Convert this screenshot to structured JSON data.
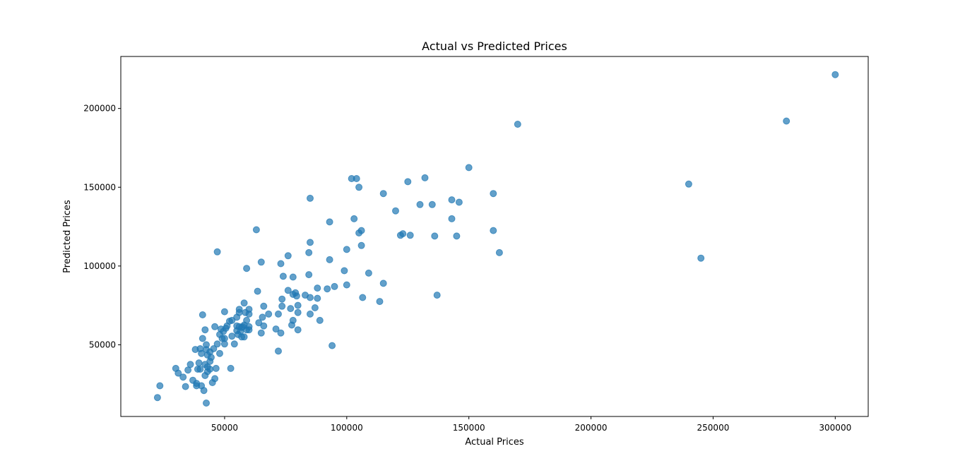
{
  "chart_data": {
    "type": "scatter",
    "title": "Actual vs Predicted Prices",
    "xlabel": "Actual Prices",
    "ylabel": "Predicted Prices",
    "xlim": [
      7500,
      313500
    ],
    "ylim": [
      4500,
      233000
    ],
    "xticks": [
      50000,
      100000,
      150000,
      200000,
      250000,
      300000
    ],
    "yticks": [
      50000,
      100000,
      150000,
      200000
    ],
    "grid": false,
    "marker_color": "#1f77b4",
    "marker_alpha": 0.7,
    "points": [
      [
        22500,
        16500
      ],
      [
        23500,
        24000
      ],
      [
        30000,
        35000
      ],
      [
        31000,
        32000
      ],
      [
        33000,
        29500
      ],
      [
        34000,
        23500
      ],
      [
        35000,
        34000
      ],
      [
        36000,
        37500
      ],
      [
        37000,
        27500
      ],
      [
        38000,
        47000
      ],
      [
        38500,
        24000
      ],
      [
        38500,
        25500
      ],
      [
        39000,
        34500
      ],
      [
        39500,
        38500
      ],
      [
        40000,
        47500
      ],
      [
        40000,
        34500
      ],
      [
        40500,
        24000
      ],
      [
        40500,
        44500
      ],
      [
        41000,
        69000
      ],
      [
        41000,
        54000
      ],
      [
        41500,
        21000
      ],
      [
        42000,
        59500
      ],
      [
        42000,
        37500
      ],
      [
        42000,
        30500
      ],
      [
        42500,
        47000
      ],
      [
        42500,
        50000
      ],
      [
        42500,
        13000
      ],
      [
        43000,
        33000
      ],
      [
        43000,
        43500
      ],
      [
        43000,
        36000
      ],
      [
        44000,
        34500
      ],
      [
        44000,
        39500
      ],
      [
        44000,
        45500
      ],
      [
        44500,
        42000
      ],
      [
        45000,
        26000
      ],
      [
        45500,
        47500
      ],
      [
        46000,
        28500
      ],
      [
        46000,
        61500
      ],
      [
        46500,
        35000
      ],
      [
        47000,
        50500
      ],
      [
        47000,
        109000
      ],
      [
        48000,
        44500
      ],
      [
        48000,
        56500
      ],
      [
        48500,
        60000
      ],
      [
        49000,
        54000
      ],
      [
        49500,
        58500
      ],
      [
        50000,
        71000
      ],
      [
        50000,
        54000
      ],
      [
        50000,
        50500
      ],
      [
        50500,
        60500
      ],
      [
        51000,
        62000
      ],
      [
        52000,
        65000
      ],
      [
        52500,
        35000
      ],
      [
        53000,
        55500
      ],
      [
        53000,
        65500
      ],
      [
        54000,
        50500
      ],
      [
        55000,
        67500
      ],
      [
        55000,
        59000
      ],
      [
        55000,
        62000
      ],
      [
        55500,
        56500
      ],
      [
        56000,
        61500
      ],
      [
        56000,
        72500
      ],
      [
        56000,
        70500
      ],
      [
        56500,
        58500
      ],
      [
        57000,
        55000
      ],
      [
        57000,
        61000
      ],
      [
        57500,
        61500
      ],
      [
        58000,
        62500
      ],
      [
        58000,
        76500
      ],
      [
        58000,
        55000
      ],
      [
        58500,
        70500
      ],
      [
        59000,
        59500
      ],
      [
        59000,
        65500
      ],
      [
        59000,
        98500
      ],
      [
        60000,
        61500
      ],
      [
        60000,
        59500
      ],
      [
        60000,
        72500
      ],
      [
        60000,
        69500
      ],
      [
        63000,
        123000
      ],
      [
        63500,
        84000
      ],
      [
        64000,
        64000
      ],
      [
        65000,
        102500
      ],
      [
        65000,
        57500
      ],
      [
        65500,
        67500
      ],
      [
        66000,
        62000
      ],
      [
        66000,
        74500
      ],
      [
        68000,
        69500
      ],
      [
        71000,
        60000
      ],
      [
        72000,
        69500
      ],
      [
        72000,
        46000
      ],
      [
        73000,
        101500
      ],
      [
        73000,
        57500
      ],
      [
        73500,
        74500
      ],
      [
        73500,
        79000
      ],
      [
        74000,
        93500
      ],
      [
        76000,
        106500
      ],
      [
        76000,
        84500
      ],
      [
        77000,
        73000
      ],
      [
        77500,
        62500
      ],
      [
        78000,
        65500
      ],
      [
        78000,
        82000
      ],
      [
        78000,
        93000
      ],
      [
        79000,
        83000
      ],
      [
        79500,
        81000
      ],
      [
        80000,
        59500
      ],
      [
        80000,
        70500
      ],
      [
        80000,
        75000
      ],
      [
        83000,
        81500
      ],
      [
        84500,
        108500
      ],
      [
        84500,
        94500
      ],
      [
        85000,
        69500
      ],
      [
        85000,
        115000
      ],
      [
        85000,
        80000
      ],
      [
        85000,
        143000
      ],
      [
        87000,
        73500
      ],
      [
        88000,
        79500
      ],
      [
        88000,
        86000
      ],
      [
        89000,
        65500
      ],
      [
        92000,
        85500
      ],
      [
        93000,
        104000
      ],
      [
        93000,
        128000
      ],
      [
        94000,
        49500
      ],
      [
        95000,
        87000
      ],
      [
        99000,
        97000
      ],
      [
        100000,
        88000
      ],
      [
        100000,
        110500
      ],
      [
        102000,
        155500
      ],
      [
        103000,
        130000
      ],
      [
        104000,
        155500
      ],
      [
        105000,
        150000
      ],
      [
        105000,
        121000
      ],
      [
        106000,
        122500
      ],
      [
        106000,
        113000
      ],
      [
        106500,
        80000
      ],
      [
        109000,
        95500
      ],
      [
        113500,
        77500
      ],
      [
        115000,
        146000
      ],
      [
        115000,
        89000
      ],
      [
        120000,
        135000
      ],
      [
        122000,
        119500
      ],
      [
        123000,
        120500
      ],
      [
        125000,
        153500
      ],
      [
        126000,
        119500
      ],
      [
        130000,
        139000
      ],
      [
        132000,
        156000
      ],
      [
        135000,
        139000
      ],
      [
        136000,
        119000
      ],
      [
        137000,
        81500
      ],
      [
        143000,
        142000
      ],
      [
        143000,
        130000
      ],
      [
        145000,
        119000
      ],
      [
        146000,
        140500
      ],
      [
        150000,
        162500
      ],
      [
        160000,
        146000
      ],
      [
        160000,
        122500
      ],
      [
        162500,
        108500
      ],
      [
        170000,
        190000
      ],
      [
        240000,
        152000
      ],
      [
        245000,
        105000
      ],
      [
        280000,
        192000
      ],
      [
        300000,
        221500
      ]
    ]
  }
}
